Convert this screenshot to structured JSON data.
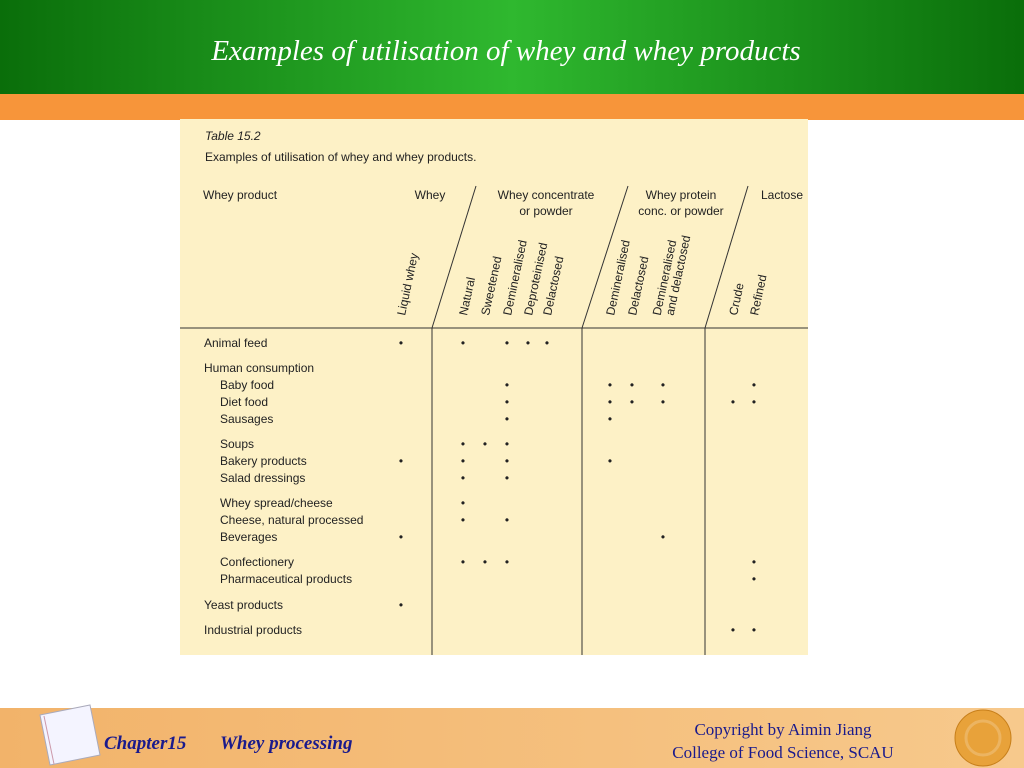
{
  "header": {
    "title": "Examples of utilisation of whey and whey products"
  },
  "table": {
    "number": "Table 15.2",
    "caption": "Examples of utilisation of whey and whey products.",
    "row_header": "Whey product",
    "groups": [
      {
        "label": [
          "Whey"
        ],
        "columns": [
          [
            "Liquid whey"
          ]
        ]
      },
      {
        "label": [
          "Whey concentrate",
          "or powder"
        ],
        "columns": [
          [
            "Natural"
          ],
          [
            "Sweetened"
          ],
          [
            "Demineralised"
          ],
          [
            "Deproteinised"
          ],
          [
            "Delactosed"
          ]
        ]
      },
      {
        "label": [
          "Whey protein",
          "conc. or powder"
        ],
        "columns": [
          [
            "Demineralised"
          ],
          [
            "Delactosed"
          ],
          [
            "Demineralised",
            "and delactosed"
          ]
        ]
      },
      {
        "label": [
          "Lactose"
        ],
        "columns": [
          [
            "Crude"
          ],
          [
            "Refined"
          ]
        ]
      }
    ],
    "rows": [
      {
        "label": "Animal feed",
        "cells": [
          "•",
          "•",
          null,
          "•",
          "•",
          "•",
          null,
          null,
          null,
          null,
          null
        ]
      },
      {
        "label": "Human consumption",
        "items": [
          {
            "label": "Baby food",
            "cells": [
              null,
              null,
              null,
              "•",
              null,
              null,
              "•",
              "•",
              "•",
              null,
              "•"
            ]
          },
          {
            "label": "Diet food",
            "cells": [
              null,
              null,
              null,
              "•",
              null,
              null,
              "•",
              "•",
              "•",
              "•",
              "•"
            ]
          },
          {
            "label": "Sausages",
            "cells": [
              null,
              null,
              null,
              "•",
              null,
              null,
              "•",
              null,
              null,
              null,
              null
            ]
          },
          {
            "label": "Soups",
            "cells": [
              null,
              "•",
              "•",
              "•",
              null,
              null,
              null,
              null,
              null,
              null,
              null
            ]
          },
          {
            "label": "Bakery products",
            "cells": [
              "•",
              "•",
              null,
              "•",
              null,
              null,
              "•",
              null,
              null,
              null,
              null
            ]
          },
          {
            "label": "Salad dressings",
            "cells": [
              null,
              "•",
              null,
              "•",
              null,
              null,
              null,
              null,
              null,
              null,
              null
            ]
          },
          {
            "label": "Whey spread/cheese",
            "cells": [
              null,
              "•",
              null,
              null,
              null,
              null,
              null,
              null,
              null,
              null,
              null
            ]
          },
          {
            "label": "Cheese, natural processed",
            "cells": [
              null,
              "•",
              null,
              "•",
              null,
              null,
              null,
              null,
              null,
              null,
              null
            ]
          },
          {
            "label": "Beverages",
            "cells": [
              "•",
              null,
              null,
              null,
              null,
              null,
              null,
              null,
              "•",
              null,
              null
            ]
          },
          {
            "label": "Confectionery",
            "cells": [
              null,
              "•",
              "•",
              "•",
              null,
              null,
              null,
              null,
              null,
              null,
              "•"
            ]
          },
          {
            "label": "Pharmaceutical products",
            "cells": [
              null,
              null,
              null,
              null,
              null,
              null,
              null,
              null,
              null,
              null,
              "•"
            ]
          }
        ]
      },
      {
        "label": "Yeast products",
        "cells": [
          "•",
          null,
          null,
          null,
          null,
          null,
          null,
          null,
          null,
          null,
          null
        ]
      },
      {
        "label": "Industrial products",
        "cells": [
          null,
          null,
          null,
          null,
          null,
          null,
          null,
          null,
          null,
          "•",
          "•"
        ]
      }
    ]
  },
  "footer": {
    "chapter": "Chapter15",
    "topic": "Whey processing",
    "copyright": "Copyright by Aimin Jiang",
    "college": "College of Food Science, SCAU"
  }
}
